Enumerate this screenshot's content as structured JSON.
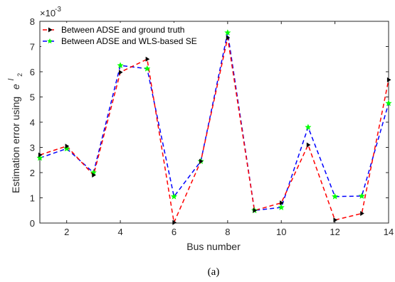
{
  "chart_data": {
    "type": "line",
    "xlabel": "Bus number",
    "ylabel_main": "Estimation error using",
    "ylabel_symbol": "e",
    "ylabel_sub": "l",
    "ylabel_subsub": "2",
    "exponent_label": "×10",
    "exponent_power": "-3",
    "xlim": [
      1,
      14
    ],
    "ylim": [
      0,
      8
    ],
    "xticks": [
      2,
      4,
      6,
      8,
      10,
      12,
      14
    ],
    "yticks": [
      0,
      1,
      2,
      3,
      4,
      5,
      6,
      7,
      8
    ],
    "grid": false,
    "legend_position": "top-left",
    "x": [
      1,
      2,
      3,
      4,
      5,
      6,
      7,
      8,
      9,
      10,
      11,
      12,
      13,
      14
    ],
    "series": [
      {
        "name": "Between ADSE and ground truth",
        "color": "#ff0000",
        "marker_color": "#000000",
        "marker": "triangle-right",
        "values": [
          2.7,
          3.05,
          1.9,
          5.98,
          6.5,
          0.02,
          2.45,
          7.35,
          0.5,
          0.8,
          3.1,
          0.12,
          0.38,
          5.68
        ]
      },
      {
        "name": "Between ADSE and WLS-based SE",
        "color": "#0000ff",
        "marker_color": "#00ff00",
        "marker": "star",
        "values": [
          2.58,
          2.95,
          2.0,
          6.25,
          6.12,
          1.05,
          2.45,
          7.55,
          0.5,
          0.62,
          3.8,
          1.05,
          1.07,
          4.75
        ]
      }
    ]
  },
  "caption": "(a)"
}
